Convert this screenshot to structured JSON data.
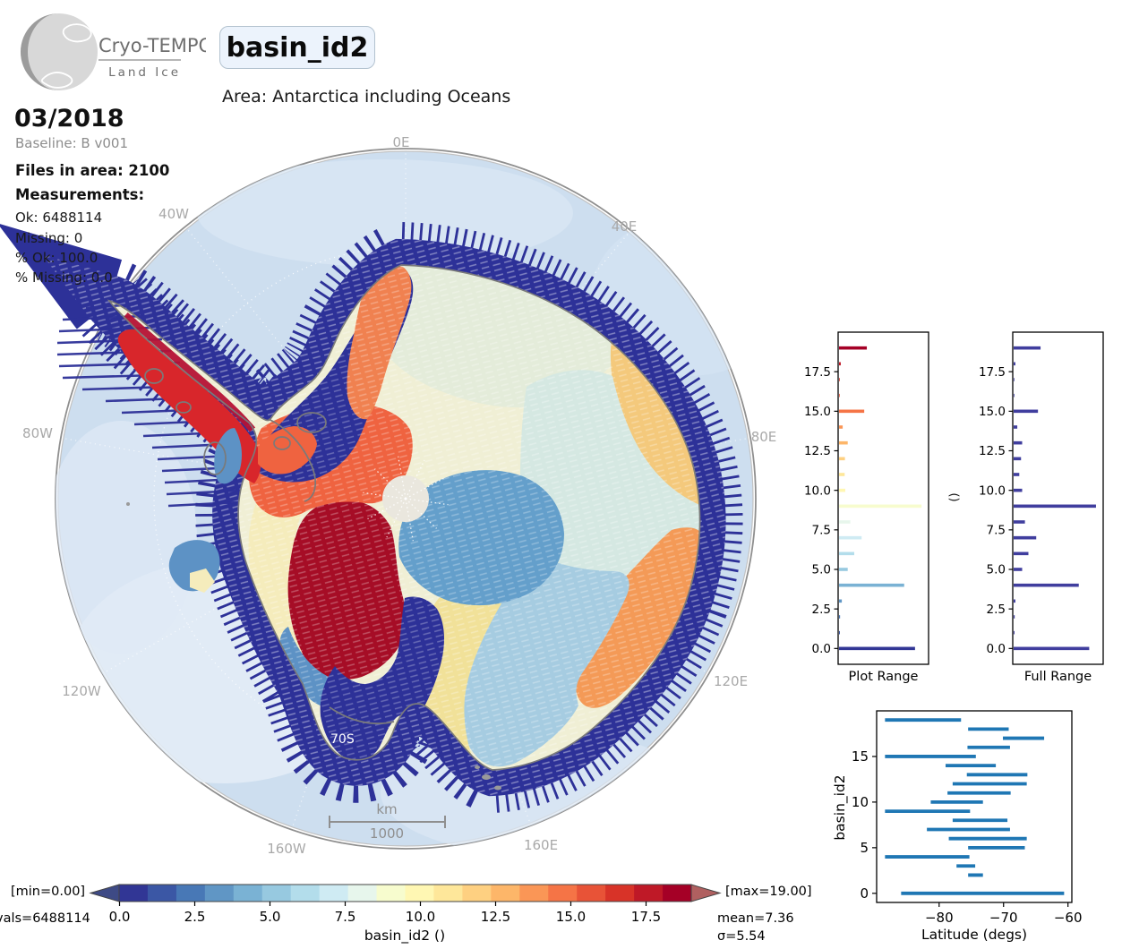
{
  "header": {
    "logo_line1": "Cryo-TEMPO",
    "logo_line2": "Land Ice",
    "title": "basin_id2",
    "subtitle": "Area: Antarctica including Oceans"
  },
  "stats": {
    "period": "03/2018",
    "baseline": "Baseline: B v001",
    "files": "Files in area: 2100",
    "measurements_label": "Measurements:",
    "lines": [
      "Ok: 6488114",
      "Missing: 0",
      "% Ok: 100.0",
      "% Missing: 0.0"
    ]
  },
  "map": {
    "meridian_labels": [
      "0E",
      "40E",
      "80E",
      "120E",
      "160E",
      "160W",
      "120W",
      "80W",
      "40W"
    ],
    "parallel_label": "70S",
    "scale_unit": "km",
    "scale_value": "1000",
    "ocean_color": "#cddeef",
    "track_color": "#2d3198",
    "coast_color": "#7a7a7a"
  },
  "chart_data": [
    {
      "id": "plot_range_hist",
      "type": "bar",
      "orientation": "horizontal",
      "title": "Plot Range",
      "ylim": [
        -1,
        20
      ],
      "yticks": [
        0.0,
        2.5,
        5.0,
        7.5,
        10.0,
        12.5,
        15.0,
        17.5
      ],
      "colors_from": "colorbar",
      "values": [
        {
          "id": 0,
          "frac": 0.875
        },
        {
          "id": 1,
          "frac": 0.01
        },
        {
          "id": 2,
          "frac": 0.012
        },
        {
          "id": 3,
          "frac": 0.032
        },
        {
          "id": 4,
          "frac": 0.75
        },
        {
          "id": 5,
          "frac": 0.1
        },
        {
          "id": 6,
          "frac": 0.175
        },
        {
          "id": 7,
          "frac": 0.26
        },
        {
          "id": 8,
          "frac": 0.13
        },
        {
          "id": 9,
          "frac": 0.95
        },
        {
          "id": 10,
          "frac": 0.072
        },
        {
          "id": 11,
          "frac": 0.065
        },
        {
          "id": 12,
          "frac": 0.068
        },
        {
          "id": 13,
          "frac": 0.1
        },
        {
          "id": 14,
          "frac": 0.042
        },
        {
          "id": 15,
          "frac": 0.29
        },
        {
          "id": 16,
          "frac": 0.008
        },
        {
          "id": 17,
          "frac": 0.008
        },
        {
          "id": 18,
          "frac": 0.02
        },
        {
          "id": 19,
          "frac": 0.32
        }
      ]
    },
    {
      "id": "full_range_hist",
      "type": "bar",
      "orientation": "horizontal",
      "title": "Full Range",
      "ylabel": "()",
      "bar_color": "#403e9e",
      "ylim": [
        -1,
        20
      ],
      "yticks": [
        0.0,
        2.5,
        5.0,
        7.5,
        10.0,
        12.5,
        15.0,
        17.5
      ],
      "values": [
        {
          "id": 0,
          "frac": 0.87
        },
        {
          "id": 1,
          "frac": 0.01
        },
        {
          "id": 2,
          "frac": 0.012
        },
        {
          "id": 3,
          "frac": 0.02
        },
        {
          "id": 4,
          "frac": 0.75
        },
        {
          "id": 5,
          "frac": 0.098
        },
        {
          "id": 6,
          "frac": 0.17
        },
        {
          "id": 7,
          "frac": 0.26
        },
        {
          "id": 8,
          "frac": 0.13
        },
        {
          "id": 9,
          "frac": 0.948
        },
        {
          "id": 10,
          "frac": 0.098
        },
        {
          "id": 11,
          "frac": 0.065
        },
        {
          "id": 12,
          "frac": 0.085
        },
        {
          "id": 13,
          "frac": 0.098
        },
        {
          "id": 14,
          "frac": 0.042
        },
        {
          "id": 15,
          "frac": 0.28
        },
        {
          "id": 16,
          "frac": 0.008
        },
        {
          "id": 17,
          "frac": 0.008
        },
        {
          "id": 18,
          "frac": 0.02
        },
        {
          "id": 19,
          "frac": 0.31
        }
      ]
    },
    {
      "id": "latitude_chart",
      "type": "line",
      "xlabel": "Latitude (degs)",
      "ylabel": "basin_id2",
      "xlim": [
        -89.7,
        -59.4
      ],
      "ylim": [
        -1,
        20
      ],
      "xticks": [
        -80,
        -70,
        -60
      ],
      "yticks": [
        0,
        5,
        10,
        15
      ],
      "color": "#1f77b4",
      "segments": [
        {
          "id": 19,
          "from": -88.4,
          "to": -76.6
        },
        {
          "id": 18,
          "from": -75.5,
          "to": -69.2
        },
        {
          "id": 17,
          "from": -70.1,
          "to": -63.7
        },
        {
          "id": 16,
          "from": -75.6,
          "to": -69.0
        },
        {
          "id": 15,
          "from": -88.4,
          "to": -74.3
        },
        {
          "id": 14,
          "from": -79.0,
          "to": -71.2
        },
        {
          "id": 13,
          "from": -75.7,
          "to": -66.3
        },
        {
          "id": 12,
          "from": -77.9,
          "to": -66.4
        },
        {
          "id": 11,
          "from": -78.7,
          "to": -68.9
        },
        {
          "id": 10,
          "from": -81.3,
          "to": -73.2
        },
        {
          "id": 9,
          "from": -88.4,
          "to": -75.2
        },
        {
          "id": 8,
          "from": -77.9,
          "to": -69.4
        },
        {
          "id": 7,
          "from": -81.9,
          "to": -69.0
        },
        {
          "id": 6,
          "from": -78.5,
          "to": -66.4
        },
        {
          "id": 5,
          "from": -75.5,
          "to": -66.7
        },
        {
          "id": 4,
          "from": -88.4,
          "to": -75.3
        },
        {
          "id": 3,
          "from": -77.3,
          "to": -74.4
        },
        {
          "id": 2,
          "from": -75.5,
          "to": -73.2
        },
        {
          "id": 0,
          "from": -85.9,
          "to": -60.6
        }
      ]
    },
    {
      "id": "colorbar",
      "type": "colorbar",
      "vmin": 0,
      "vmax": 19,
      "min_label": "[min=0.00]",
      "max_label": "[max=19.00]",
      "vals_label": "vals=6488114",
      "mean_label": "mean=7.36",
      "sigma_label": "σ=5.54",
      "axis_label": "basin_id2 ()",
      "ticks": [
        0.0,
        2.5,
        5.0,
        7.5,
        10.0,
        12.5,
        15.0,
        17.5
      ],
      "under_color": "#3e4a85",
      "over_color": "#b06060",
      "colors": [
        "#313695",
        "#3b57a5",
        "#4878b6",
        "#6096c5",
        "#7ab2d4",
        "#97c9e0",
        "#b3ddeb",
        "#cfebf3",
        "#e7f6ec",
        "#f7fcce",
        "#fff7b3",
        "#fee79a",
        "#fed081",
        "#fdb669",
        "#fa9656",
        "#f57446",
        "#e85337",
        "#d83328",
        "#bf1927",
        "#a50026"
      ]
    }
  ]
}
